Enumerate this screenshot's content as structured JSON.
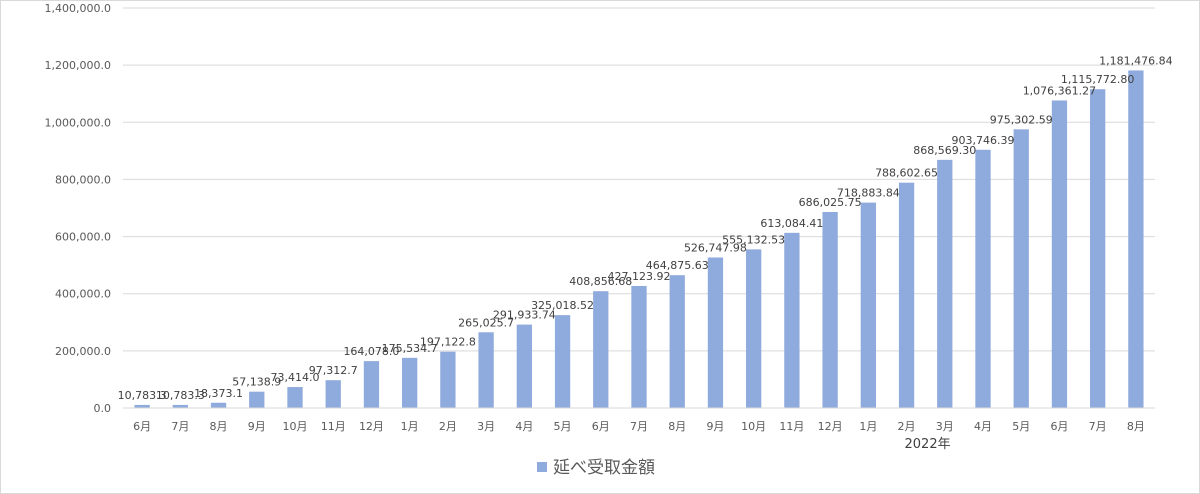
{
  "chart_data": {
    "type": "bar",
    "categories": [
      "6月",
      "7月",
      "8月",
      "9月",
      "10月",
      "11月",
      "12月",
      "1月",
      "2月",
      "3月",
      "4月",
      "5月",
      "6月",
      "7月",
      "8月",
      "9月",
      "10月",
      "11月",
      "12月",
      "1月",
      "2月",
      "3月",
      "4月",
      "5月",
      "6月",
      "7月",
      "8月"
    ],
    "values": [
      10783.3,
      10783.3,
      18373.1,
      57138.9,
      73414.0,
      97312.7,
      164078.0,
      175534.7,
      197122.8,
      265025.7,
      291933.74,
      325018.52,
      408856.68,
      427123.92,
      464875.63,
      526747.98,
      555132.53,
      613084.41,
      686025.75,
      718883.84,
      788602.65,
      868569.3,
      903746.39,
      975302.59,
      1076361.27,
      1115772.8,
      1181476.84
    ],
    "data_labels": [
      "10,783.3",
      "10,783.3",
      "18,373.1",
      "57,138.9",
      "73,414.0",
      "97,312.7",
      "164,078.0",
      "175,534.7",
      "197,122.8",
      "265,025.7",
      "291,933.74",
      "325,018.52",
      "408,856.68",
      "427,123.92",
      "464,875.63",
      "526,747.98",
      "555,132.53",
      "613,084.41",
      "686,025.75",
      "718,883.84",
      "788,602.65",
      "868,569.30",
      "903,746.39",
      "975,302.59",
      "1,076,361.27",
      "1,115,772.80",
      "1,181,476.84"
    ],
    "y_ticks": [
      "0.0",
      "200,000.0",
      "400,000.0",
      "600,000.0",
      "800,000.0",
      "1,000,000.0",
      "1,200,000.0",
      "1,400,000.0"
    ],
    "ylim": [
      0,
      1400000
    ],
    "year_label": "2022年",
    "year_label_after_index": 20,
    "series_name": "延べ受取金額",
    "bar_color": "#8faadc",
    "grid": true,
    "legend_position": "bottom"
  }
}
